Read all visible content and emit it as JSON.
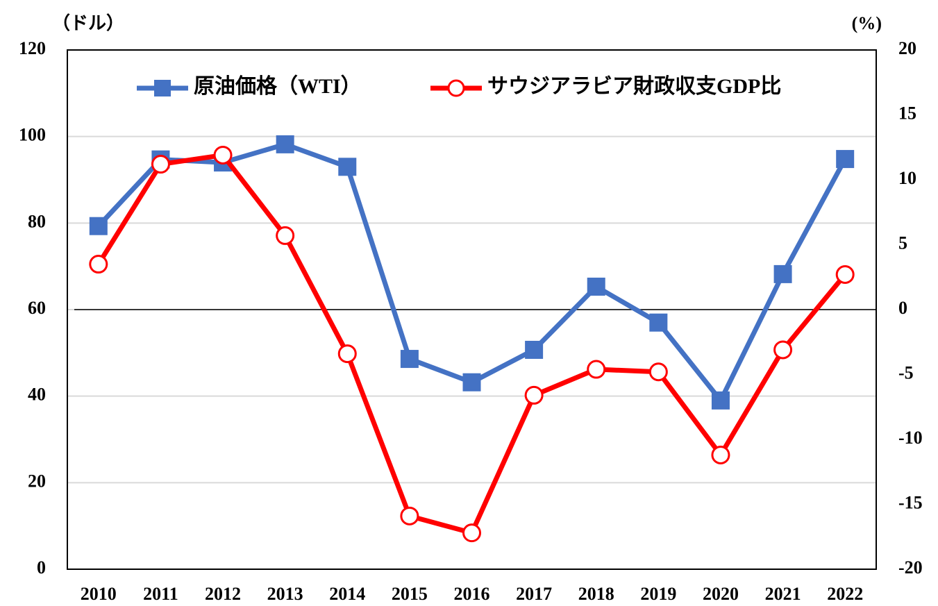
{
  "chart_data": {
    "type": "line",
    "y_axis_label": "（ドル）",
    "y2_axis_label": "(%)",
    "categories": [
      "2010",
      "2011",
      "2012",
      "2013",
      "2014",
      "2015",
      "2016",
      "2017",
      "2018",
      "2019",
      "2020",
      "2021",
      "2022"
    ],
    "series": [
      {
        "name": "原油価格（WTI）",
        "color": "#4472c4",
        "marker": "square",
        "values": [
          79.3,
          94.7,
          94,
          98.2,
          93,
          48.6,
          43.2,
          50.7,
          65.3,
          57,
          39,
          68.2,
          94.8
        ]
      },
      {
        "name": "サウジアラビア財政収支GDP比",
        "color": "#ff0000",
        "marker": "open-circle",
        "axis": "y2",
        "values": [
          3.5,
          11.2,
          11.9,
          5.7,
          -3.4,
          -15.9,
          -17.2,
          -6.6,
          -4.6,
          -4.8,
          -11.2,
          -3.1,
          2.7
        ]
      }
    ],
    "ylim": [
      0,
      120
    ],
    "yticks": [
      0,
      20,
      40,
      60,
      80,
      100,
      120
    ],
    "y2lim": [
      -20,
      20
    ],
    "y2ticks": [
      -20,
      -15,
      -10,
      -5,
      0,
      5,
      10,
      15,
      20
    ],
    "grid": true,
    "y2_zero_line": true,
    "legend": "top"
  }
}
